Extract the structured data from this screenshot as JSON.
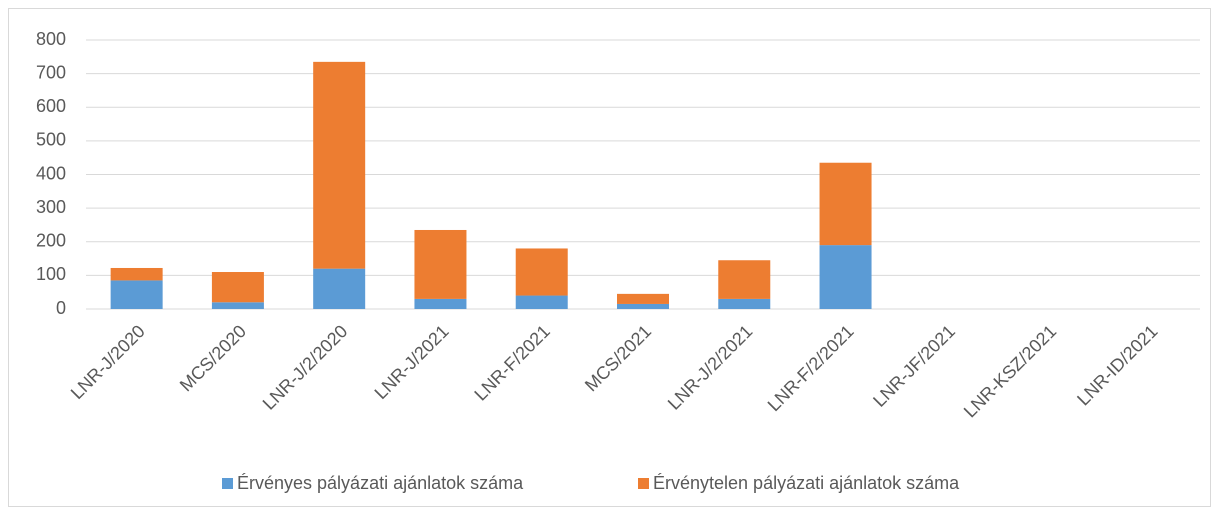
{
  "chart_data": {
    "type": "stacked_bar",
    "categories": [
      "LNR-J/2020",
      "MCS/2020",
      "LNR-J/2/2020",
      "LNR-J/2021",
      "LNR-F/2021",
      "MCS/2021",
      "LNR-J/2/2021",
      "LNR-F/2/2021",
      "LNR-JF/2021",
      "LNR-KSZ/2021",
      "LNR-ID/2021"
    ],
    "series": [
      {
        "name": "Érvényes pályázati ajánlatok száma",
        "color": "#5b9bd5",
        "values": [
          85,
          20,
          120,
          30,
          40,
          15,
          30,
          190,
          0,
          0,
          0
        ]
      },
      {
        "name": "Érvénytelen pályázati ajánlatok száma",
        "color": "#ed7d31",
        "values": [
          37,
          90,
          615,
          205,
          140,
          30,
          115,
          245,
          0,
          0,
          0
        ]
      }
    ],
    "ylim": [
      0,
      800
    ],
    "yticks": [
      0,
      100,
      200,
      300,
      400,
      500,
      600,
      700,
      800
    ],
    "grid": true,
    "legend": "bottom"
  }
}
